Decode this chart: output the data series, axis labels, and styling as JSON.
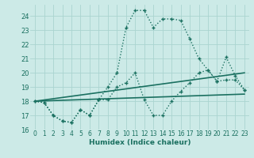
{
  "xlabel": "Humidex (Indice chaleur)",
  "background_color": "#cceae7",
  "grid_color": "#aad4d0",
  "line_color": "#1a7060",
  "xlim": [
    -0.5,
    23.5
  ],
  "ylim": [
    16,
    24.8
  ],
  "yticks": [
    16,
    17,
    18,
    19,
    20,
    21,
    22,
    23,
    24
  ],
  "xticks": [
    0,
    1,
    2,
    3,
    4,
    5,
    6,
    7,
    8,
    9,
    10,
    11,
    12,
    13,
    14,
    15,
    16,
    17,
    18,
    19,
    20,
    21,
    22,
    23
  ],
  "curve_main_x": [
    0,
    1,
    2,
    3,
    4,
    5,
    6,
    7,
    8,
    9,
    10,
    11,
    12,
    13,
    14,
    15,
    16,
    17,
    18,
    19,
    20,
    21,
    22,
    23
  ],
  "curve_main_y": [
    18.0,
    17.9,
    17.0,
    16.6,
    16.5,
    17.4,
    17.0,
    18.1,
    19.0,
    20.0,
    23.2,
    24.4,
    24.4,
    23.2,
    23.8,
    23.8,
    23.7,
    22.4,
    21.0,
    20.2,
    19.4,
    21.1,
    19.8,
    18.8
  ],
  "curve_lower_x": [
    0,
    1,
    2,
    3,
    4,
    5,
    6,
    7,
    8,
    9,
    10,
    11,
    12,
    13,
    14,
    15,
    16,
    17,
    18,
    19,
    20,
    21,
    22,
    23
  ],
  "curve_lower_y": [
    18.0,
    17.9,
    17.0,
    16.6,
    16.5,
    17.4,
    17.0,
    18.1,
    18.1,
    19.0,
    19.3,
    20.0,
    18.1,
    17.0,
    17.0,
    18.0,
    18.7,
    19.3,
    20.0,
    20.2,
    19.4,
    19.5,
    19.5,
    18.8
  ],
  "line1_x": [
    0,
    23
  ],
  "line1_y": [
    18.0,
    20.0
  ],
  "line2_x": [
    0,
    23
  ],
  "line2_y": [
    18.0,
    18.5
  ]
}
